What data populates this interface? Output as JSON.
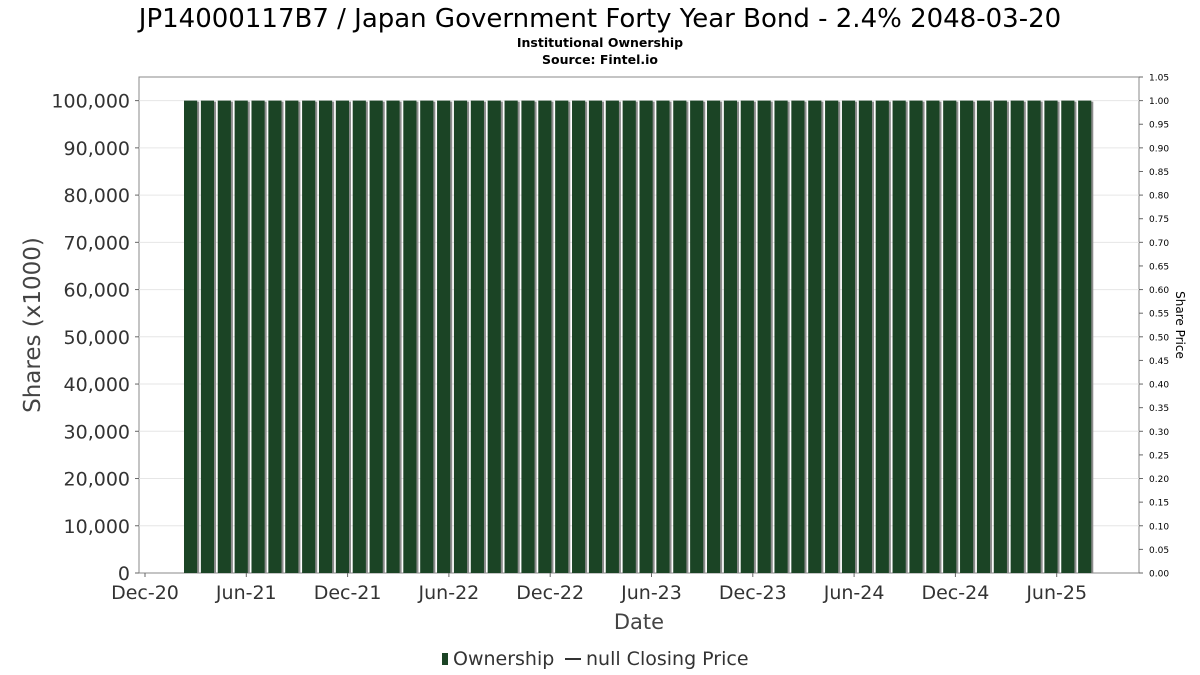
{
  "chart_data": {
    "type": "bar",
    "title": "JP14000117B7 / Japan Government Forty Year Bond - 2.4% 2048-03-20",
    "subtitle": "Institutional Ownership",
    "source": "Source: Fintel.io",
    "xlabel": "Date",
    "ylabel": "Shares (x1000)",
    "y2label": "Share Price",
    "ylim": [
      0,
      105000
    ],
    "y2lim": [
      0,
      1.05
    ],
    "yticks": [
      "0",
      "10,000",
      "20,000",
      "30,000",
      "40,000",
      "50,000",
      "60,000",
      "70,000",
      "80,000",
      "90,000",
      "100,000"
    ],
    "y2ticks": [
      "0.00",
      "0.05",
      "0.10",
      "0.15",
      "0.20",
      "0.25",
      "0.30",
      "0.35",
      "0.40",
      "0.45",
      "0.50",
      "0.55",
      "0.60",
      "0.65",
      "0.70",
      "0.75",
      "0.80",
      "0.85",
      "0.90",
      "0.95",
      "1.00",
      "1.05"
    ],
    "xticks": [
      "Dec-20",
      "Jun-21",
      "Dec-21",
      "Jun-22",
      "Dec-22",
      "Jun-23",
      "Dec-23",
      "Jun-24",
      "Dec-24",
      "Jun-25"
    ],
    "bar_count": 54,
    "values": [
      100000,
      100000,
      100000,
      100000,
      100000,
      100000,
      100000,
      100000,
      100000,
      100000,
      100000,
      100000,
      100000,
      100000,
      100000,
      100000,
      100000,
      100000,
      100000,
      100000,
      100000,
      100000,
      100000,
      100000,
      100000,
      100000,
      100000,
      100000,
      100000,
      100000,
      100000,
      100000,
      100000,
      100000,
      100000,
      100000,
      100000,
      100000,
      100000,
      100000,
      100000,
      100000,
      100000,
      100000,
      100000,
      100000,
      100000,
      100000,
      100000,
      100000,
      100000,
      100000,
      100000,
      100000
    ],
    "series": [
      {
        "name": "Ownership",
        "color": "#1b4425"
      },
      {
        "name": "null Closing Price",
        "color": "#333333"
      }
    ],
    "legend_position": "bottom-center"
  }
}
